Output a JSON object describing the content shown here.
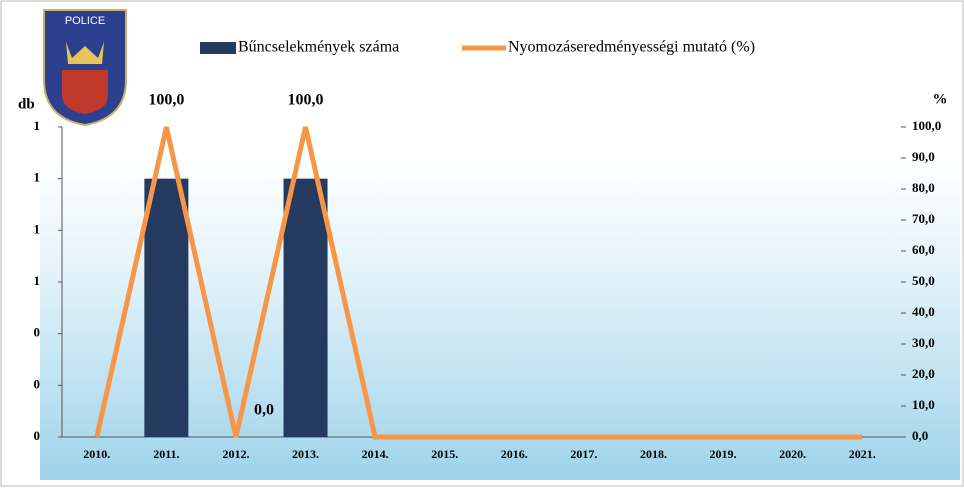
{
  "logo": {
    "text": "POLICE"
  },
  "chart_data": {
    "type": "bar-line",
    "y_label": "db",
    "y2_label": "%",
    "categories": [
      "2010.",
      "2011.",
      "2012.",
      "2013.",
      "2014.",
      "2015.",
      "2016.",
      "2017.",
      "2018.",
      "2019.",
      "2020.",
      "2021."
    ],
    "series": [
      {
        "name": "Bűncselekmények száma",
        "type": "bar",
        "color": "#243a5e",
        "values": [
          0,
          1,
          0,
          1,
          0,
          0,
          0,
          0,
          0,
          0,
          0,
          0
        ]
      },
      {
        "name": "Nyomozáseredményességi mutató (%)",
        "type": "line",
        "axis": "y2",
        "color": "#f79646",
        "values": [
          0,
          100,
          0,
          100,
          0,
          0,
          0,
          0,
          0,
          0,
          0,
          0
        ],
        "value_labels": [
          null,
          "100,0",
          "0,0",
          "100,0",
          null,
          null,
          null,
          null,
          null,
          null,
          null,
          null
        ]
      }
    ],
    "ylim": [
      0,
      1.2
    ],
    "yticks": [
      0,
      {
        "value": 0.2,
        "label": "0"
      },
      {
        "value": 0.4,
        "label": "0"
      },
      {
        "value": 0.6,
        "label": "1"
      },
      {
        "value": 0.8,
        "label": "1"
      },
      1,
      {
        "value": 1.2,
        "label": "1"
      }
    ],
    "y2lim": [
      0,
      100
    ],
    "y2ticks": [
      {
        "value": 0,
        "label": "0,0"
      },
      {
        "value": 10,
        "label": "10,0"
      },
      {
        "value": 20,
        "label": "20,0"
      },
      {
        "value": 30,
        "label": "30,0"
      },
      {
        "value": 40,
        "label": "40,0"
      },
      {
        "value": 50,
        "label": "50,0"
      },
      {
        "value": 60,
        "label": "60,0"
      },
      {
        "value": 70,
        "label": "70,0"
      },
      {
        "value": 80,
        "label": "80,0"
      },
      {
        "value": 90,
        "label": "90,0"
      },
      {
        "value": 100,
        "label": "100,0"
      }
    ]
  }
}
